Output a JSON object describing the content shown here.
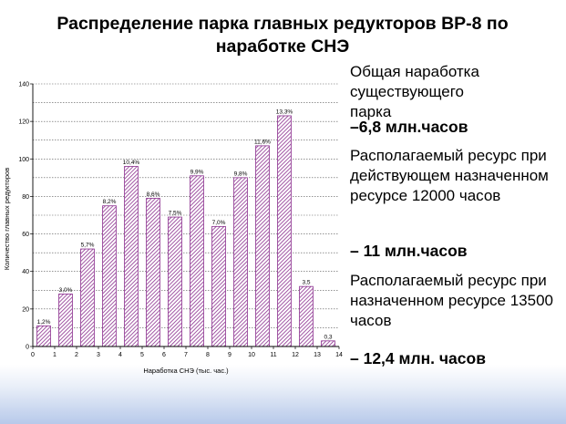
{
  "slide": {
    "title": "Распределение парка главных редукторов ВР-8 по наработке СНЭ",
    "right_text": [
      {
        "text": "Общая наработка существующего парка",
        "bold": false
      },
      {
        "text": "–6,8 млн.часов",
        "bold": true
      },
      {
        "text": "Располагаемый ресурс при действующем назначенном ресурсе 12000 часов",
        "bold": false
      },
      {
        "text": "– 11 млн.часов",
        "bold": true
      },
      {
        "text": "Располагаемый ресурс при назначенном ресурсе 13500 часов",
        "bold": false
      },
      {
        "text": "– 12,4 млн. часов",
        "bold": true
      }
    ]
  },
  "chart_data": {
    "type": "bar",
    "xlabel": "Наработка СНЭ (тыс. час.)",
    "ylabel": "Количество главных редукторов",
    "xlim": [
      0,
      14
    ],
    "ylim": [
      0,
      140
    ],
    "x_ticks": [
      "0",
      "1",
      "2",
      "3",
      "4",
      "5",
      "6",
      "7",
      "8",
      "9",
      "10",
      "11",
      "12",
      "13",
      "14"
    ],
    "y_ticks": [
      "0",
      "20",
      "40",
      "60",
      "80",
      "100",
      "120",
      "140"
    ],
    "grid": true,
    "bar_color": "#8b2f8f",
    "bars": [
      {
        "x": 0.5,
        "value": 11,
        "label": "1,2%"
      },
      {
        "x": 1.5,
        "value": 28,
        "label": "3,0%"
      },
      {
        "x": 2.5,
        "value": 52,
        "label": "5,7%"
      },
      {
        "x": 3.5,
        "value": 75,
        "label": "8,2%"
      },
      {
        "x": 4.5,
        "value": 96,
        "label": "10,4%"
      },
      {
        "x": 5.5,
        "value": 79,
        "label": "8,6%"
      },
      {
        "x": 6.5,
        "value": 69,
        "label": "7,5%"
      },
      {
        "x": 7.5,
        "value": 91,
        "label": "9,9%"
      },
      {
        "x": 8.5,
        "value": 64,
        "label": "7,0%"
      },
      {
        "x": 9.5,
        "value": 90,
        "label": "9,8%"
      },
      {
        "x": 10.5,
        "value": 107,
        "label": "11,6%"
      },
      {
        "x": 11.5,
        "value": 123,
        "label": "13,3%"
      },
      {
        "x": 12.5,
        "value": 32,
        "label": "3,5"
      },
      {
        "x": 13.5,
        "value": 3,
        "label": "0,3"
      }
    ]
  }
}
